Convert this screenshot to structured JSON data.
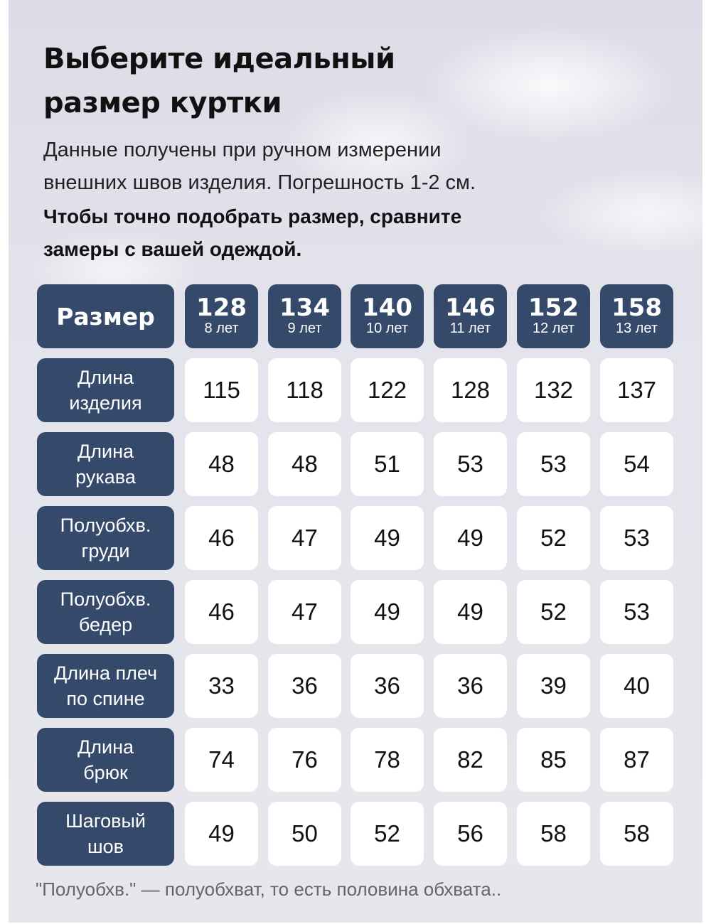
{
  "title_lines": [
    "Выберите идеальный",
    "размер куртки"
  ],
  "subtitle_lines": [
    "Данные получены при ручном измерении",
    "внешних швов изделия. Погрешность 1-2 см."
  ],
  "bold_note_lines": [
    "Чтобы точно подобрать размер, сравните",
    "замеры с вашей одеждой."
  ],
  "colors": {
    "header_bg": "#354a6b",
    "cell_bg": "#ffffff",
    "page_bg": "#e4e4ec"
  },
  "table": {
    "corner_label": "Размер",
    "sizes": [
      {
        "size": "128",
        "age": "8 лет"
      },
      {
        "size": "134",
        "age": "9 лет"
      },
      {
        "size": "140",
        "age": "10 лет"
      },
      {
        "size": "146",
        "age": "11 лет"
      },
      {
        "size": "152",
        "age": "12 лет"
      },
      {
        "size": "158",
        "age": "13 лет"
      }
    ],
    "rows": [
      {
        "label": [
          "Длина",
          "изделия"
        ],
        "values": [
          "115",
          "118",
          "122",
          "128",
          "132",
          "137"
        ]
      },
      {
        "label": [
          "Длина",
          "рукава"
        ],
        "values": [
          "48",
          "48",
          "51",
          "53",
          "53",
          "54"
        ]
      },
      {
        "label": [
          "Полуобхв.",
          "груди"
        ],
        "values": [
          "46",
          "47",
          "49",
          "49",
          "52",
          "53"
        ]
      },
      {
        "label": [
          "Полуобхв.",
          "бедер"
        ],
        "values": [
          "46",
          "47",
          "49",
          "49",
          "52",
          "53"
        ]
      },
      {
        "label": [
          "Длина плеч",
          "по спине"
        ],
        "values": [
          "33",
          "36",
          "36",
          "36",
          "39",
          "40"
        ]
      },
      {
        "label": [
          "Длина",
          "брюк"
        ],
        "values": [
          "74",
          "76",
          "78",
          "82",
          "85",
          "87"
        ]
      },
      {
        "label": [
          "Шаговый",
          "шов"
        ],
        "values": [
          "49",
          "50",
          "52",
          "56",
          "58",
          "58"
        ]
      }
    ]
  },
  "footnote": "\"Полуобхв.\" — полуобхват, то есть половина обхвата.."
}
